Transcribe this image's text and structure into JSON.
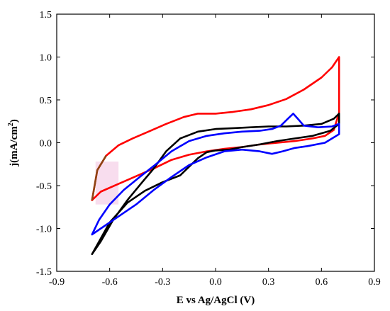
{
  "chart_data": {
    "type": "line",
    "xlabel": "E vs Ag/AgCl (V)",
    "ylabel": {
      "main": "j(mA/cm",
      "sup": "2",
      "close": ")"
    },
    "xlim": [
      -0.9,
      0.9
    ],
    "ylim": [
      -1.5,
      1.5
    ],
    "xticks": [
      "-0.9",
      "-0.6",
      "-0.3",
      "0.0",
      "0.3",
      "0.6",
      "0.9"
    ],
    "yticks": [
      "-1.5",
      "-1.0",
      "-0.5",
      "0.0",
      "0.5",
      "1.0",
      "1.5"
    ],
    "xtick_values": [
      -0.9,
      -0.6,
      -0.3,
      0.0,
      0.3,
      0.6,
      0.9
    ],
    "ytick_values": [
      -1.5,
      -1.0,
      -0.5,
      0.0,
      0.5,
      1.0,
      1.5
    ],
    "grid": false,
    "legend": "none",
    "series": [
      {
        "color": "#ff0000",
        "points": [
          [
            -0.7,
            -0.67
          ],
          [
            -0.67,
            -0.32
          ],
          [
            -0.62,
            -0.15
          ],
          [
            -0.55,
            -0.03
          ],
          [
            -0.47,
            0.05
          ],
          [
            -0.38,
            0.13
          ],
          [
            -0.28,
            0.22
          ],
          [
            -0.18,
            0.3
          ],
          [
            -0.1,
            0.34
          ],
          [
            0.0,
            0.34
          ],
          [
            0.1,
            0.36
          ],
          [
            0.2,
            0.39
          ],
          [
            0.3,
            0.44
          ],
          [
            0.4,
            0.51
          ],
          [
            0.5,
            0.62
          ],
          [
            0.6,
            0.76
          ],
          [
            0.66,
            0.88
          ],
          [
            0.7,
            1.0
          ],
          [
            0.7,
            0.35
          ],
          [
            0.67,
            0.15
          ],
          [
            0.62,
            0.08
          ],
          [
            0.55,
            0.05
          ],
          [
            0.45,
            0.02
          ],
          [
            0.35,
            0.0
          ],
          [
            0.25,
            -0.02
          ],
          [
            0.15,
            -0.05
          ],
          [
            0.05,
            -0.07
          ],
          [
            -0.05,
            -0.1
          ],
          [
            -0.15,
            -0.14
          ],
          [
            -0.25,
            -0.2
          ],
          [
            -0.35,
            -0.3
          ],
          [
            -0.45,
            -0.39
          ],
          [
            -0.55,
            -0.48
          ],
          [
            -0.65,
            -0.57
          ],
          [
            -0.7,
            -0.67
          ]
        ]
      },
      {
        "color": "#000000",
        "points": [
          [
            -0.7,
            -1.3
          ],
          [
            -0.65,
            -1.15
          ],
          [
            -0.58,
            -0.9
          ],
          [
            -0.5,
            -0.67
          ],
          [
            -0.42,
            -0.47
          ],
          [
            -0.35,
            -0.3
          ],
          [
            -0.28,
            -0.1
          ],
          [
            -0.2,
            0.05
          ],
          [
            -0.1,
            0.13
          ],
          [
            0.0,
            0.16
          ],
          [
            0.1,
            0.17
          ],
          [
            0.2,
            0.18
          ],
          [
            0.3,
            0.19
          ],
          [
            0.4,
            0.19
          ],
          [
            0.5,
            0.2
          ],
          [
            0.6,
            0.22
          ],
          [
            0.67,
            0.28
          ],
          [
            0.7,
            0.34
          ],
          [
            0.7,
            0.22
          ],
          [
            0.65,
            0.14
          ],
          [
            0.55,
            0.08
          ],
          [
            0.45,
            0.05
          ],
          [
            0.35,
            0.02
          ],
          [
            0.25,
            -0.02
          ],
          [
            0.15,
            -0.05
          ],
          [
            0.08,
            -0.08
          ],
          [
            0.0,
            -0.09
          ],
          [
            -0.05,
            -0.11
          ],
          [
            -0.1,
            -0.18
          ],
          [
            -0.2,
            -0.38
          ],
          [
            -0.3,
            -0.46
          ],
          [
            -0.4,
            -0.56
          ],
          [
            -0.5,
            -0.7
          ],
          [
            -0.6,
            -0.93
          ],
          [
            -0.7,
            -1.3
          ]
        ]
      },
      {
        "color": "#0000ff",
        "points": [
          [
            -0.7,
            -1.07
          ],
          [
            -0.66,
            -0.9
          ],
          [
            -0.6,
            -0.72
          ],
          [
            -0.52,
            -0.55
          ],
          [
            -0.43,
            -0.4
          ],
          [
            -0.35,
            -0.27
          ],
          [
            -0.25,
            -0.1
          ],
          [
            -0.15,
            0.02
          ],
          [
            -0.05,
            0.08
          ],
          [
            0.05,
            0.11
          ],
          [
            0.15,
            0.13
          ],
          [
            0.25,
            0.14
          ],
          [
            0.32,
            0.16
          ],
          [
            0.37,
            0.2
          ],
          [
            0.41,
            0.28
          ],
          [
            0.44,
            0.34
          ],
          [
            0.47,
            0.27
          ],
          [
            0.5,
            0.2
          ],
          [
            0.58,
            0.18
          ],
          [
            0.66,
            0.19
          ],
          [
            0.7,
            0.22
          ],
          [
            0.7,
            0.1
          ],
          [
            0.62,
            0.0
          ],
          [
            0.52,
            -0.04
          ],
          [
            0.45,
            -0.06
          ],
          [
            0.38,
            -0.1
          ],
          [
            0.32,
            -0.13
          ],
          [
            0.25,
            -0.1
          ],
          [
            0.15,
            -0.08
          ],
          [
            0.05,
            -0.1
          ],
          [
            -0.05,
            -0.17
          ],
          [
            -0.15,
            -0.26
          ],
          [
            -0.25,
            -0.4
          ],
          [
            -0.35,
            -0.55
          ],
          [
            -0.45,
            -0.72
          ],
          [
            -0.55,
            -0.86
          ],
          [
            -0.65,
            -1.0
          ],
          [
            -0.7,
            -1.07
          ]
        ]
      }
    ]
  },
  "colors": {
    "axis": "#000000",
    "background": "#ffffff",
    "highlight_box": "#f4c6e3",
    "brown_overlap": "#8b4513"
  }
}
